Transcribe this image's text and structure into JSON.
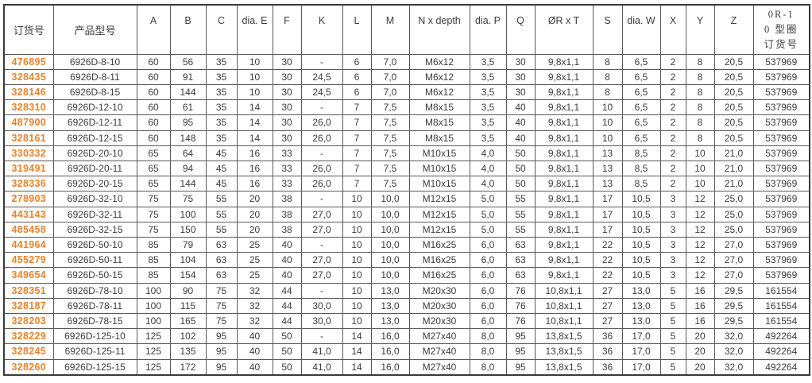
{
  "colors": {
    "order_number_accent": "#e8832b",
    "grid_line": "#5a5a5a",
    "text": "#3c3c3c"
  },
  "table": {
    "headers": [
      "订货号",
      "产品型号",
      "A",
      "B",
      "C",
      "dia. E",
      "F",
      "K",
      "L",
      "M",
      "N x depth",
      "dia. P",
      "Q",
      "ØR x T",
      "S",
      "dia. W",
      "X",
      "Y",
      "Z",
      "0R-1\n0 型圈\n订货号"
    ],
    "rows": [
      [
        "476895",
        "6926D-8-10",
        "60",
        "56",
        "35",
        "10",
        "30",
        "-",
        "6",
        "7,0",
        "M6x12",
        "3,5",
        "30",
        "9,8x1,1",
        "8",
        "6,5",
        "2",
        "8",
        "20,5",
        "537969"
      ],
      [
        "328435",
        "6926D-8-11",
        "60",
        "91",
        "35",
        "10",
        "30",
        "24,5",
        "6",
        "7,0",
        "M6x12",
        "3,5",
        "30",
        "9,8x1,1",
        "8",
        "6,5",
        "2",
        "8",
        "20,5",
        "537969"
      ],
      [
        "328146",
        "6926D-8-15",
        "60",
        "144",
        "35",
        "10",
        "30",
        "24,5",
        "6",
        "7,0",
        "M6x12",
        "3,5",
        "30",
        "9,8x1,1",
        "8",
        "6,5",
        "2",
        "8",
        "20,5",
        "537969"
      ],
      [
        "328310",
        "6926D-12-10",
        "60",
        "61",
        "35",
        "14",
        "30",
        "-",
        "7",
        "7,5",
        "M8x15",
        "3,5",
        "40",
        "9,8x1,1",
        "10",
        "6,5",
        "2",
        "8",
        "20,5",
        "537969"
      ],
      [
        "487900",
        "6926D-12-11",
        "60",
        "95",
        "35",
        "14",
        "30",
        "26,0",
        "7",
        "7,5",
        "M8x15",
        "3,5",
        "40",
        "9,8x1,1",
        "10",
        "6,5",
        "2",
        "8",
        "20,5",
        "537969"
      ],
      [
        "328161",
        "6926D-12-15",
        "60",
        "148",
        "35",
        "14",
        "30",
        "26,0",
        "7",
        "7,5",
        "M8x15",
        "3,5",
        "40",
        "9,8x1,1",
        "10",
        "6,5",
        "2",
        "8",
        "20,5",
        "537969"
      ],
      [
        "330332",
        "6926D-20-10",
        "65",
        "64",
        "45",
        "16",
        "33",
        "-",
        "7",
        "7,5",
        "M10x15",
        "4,0",
        "50",
        "9,8x1,1",
        "13",
        "8,5",
        "2",
        "10",
        "21,0",
        "537969"
      ],
      [
        "319491",
        "6926D-20-11",
        "65",
        "94",
        "45",
        "16",
        "33",
        "26,0",
        "7",
        "7,5",
        "M10x15",
        "4,0",
        "50",
        "9,8x1,1",
        "13",
        "8,5",
        "2",
        "10",
        "21,0",
        "537969"
      ],
      [
        "328336",
        "6926D-20-15",
        "65",
        "144",
        "45",
        "16",
        "33",
        "26,0",
        "7",
        "7,5",
        "M10x15",
        "4,0",
        "50",
        "9,8x1,1",
        "13",
        "8,5",
        "2",
        "10",
        "21,0",
        "537969"
      ],
      [
        "278903",
        "6926D-32-10",
        "75",
        "75",
        "55",
        "20",
        "38",
        "-",
        "10",
        "10,0",
        "M12x15",
        "5,0",
        "55",
        "9,8x1,1",
        "17",
        "10,5",
        "3",
        "12",
        "25,0",
        "537969"
      ],
      [
        "443143",
        "6926D-32-11",
        "75",
        "100",
        "55",
        "20",
        "38",
        "27,0",
        "10",
        "10,0",
        "M12x15",
        "5,0",
        "55",
        "9,8x1,1",
        "17",
        "10,5",
        "3",
        "12",
        "25,0",
        "537969"
      ],
      [
        "485458",
        "6926D-32-15",
        "75",
        "150",
        "55",
        "20",
        "38",
        "27,0",
        "10",
        "10,0",
        "M12x15",
        "5,0",
        "55",
        "9,8x1,1",
        "17",
        "10,5",
        "3",
        "12",
        "25,0",
        "537969"
      ],
      [
        "441964",
        "6926D-50-10",
        "85",
        "79",
        "63",
        "25",
        "40",
        "-",
        "10",
        "10,0",
        "M16x25",
        "6,0",
        "63",
        "9,8x1,1",
        "22",
        "10,5",
        "3",
        "12",
        "27,0",
        "537969"
      ],
      [
        "455279",
        "6926D-50-11",
        "85",
        "104",
        "63",
        "25",
        "40",
        "27,0",
        "10",
        "10,0",
        "M16x25",
        "6,0",
        "63",
        "9,8x1,1",
        "22",
        "10,5",
        "3",
        "12",
        "27,0",
        "537969"
      ],
      [
        "349654",
        "6926D-50-15",
        "85",
        "154",
        "63",
        "25",
        "40",
        "27,0",
        "10",
        "10,0",
        "M16x25",
        "6,0",
        "63",
        "9,8x1,1",
        "22",
        "10,5",
        "3",
        "12",
        "27,0",
        "537969"
      ],
      [
        "328351",
        "6926D-78-10",
        "100",
        "90",
        "75",
        "32",
        "44",
        "-",
        "10",
        "13,0",
        "M20x30",
        "6,0",
        "76",
        "10,8x1,1",
        "27",
        "13,0",
        "5",
        "16",
        "29,5",
        "161554"
      ],
      [
        "328187",
        "6926D-78-11",
        "100",
        "115",
        "75",
        "32",
        "44",
        "30,0",
        "10",
        "13,0",
        "M20x30",
        "6,0",
        "76",
        "10,8x1,1",
        "27",
        "13,0",
        "5",
        "16",
        "29,5",
        "161554"
      ],
      [
        "328203",
        "6926D-78-15",
        "100",
        "165",
        "75",
        "32",
        "44",
        "30,0",
        "10",
        "13,0",
        "M20x30",
        "6,0",
        "76",
        "10,8x1,1",
        "27",
        "13,0",
        "5",
        "16",
        "29,5",
        "161554"
      ],
      [
        "328229",
        "6926D-125-10",
        "125",
        "102",
        "95",
        "40",
        "50",
        "-",
        "14",
        "16,0",
        "M27x40",
        "8,0",
        "95",
        "13,8x1,5",
        "36",
        "17,0",
        "5",
        "20",
        "32,0",
        "492264"
      ],
      [
        "328245",
        "6926D-125-11",
        "125",
        "135",
        "95",
        "40",
        "50",
        "41,0",
        "14",
        "16,0",
        "M27x40",
        "8,0",
        "95",
        "13,8x1,5",
        "36",
        "17,0",
        "5",
        "20",
        "32,0",
        "492264"
      ],
      [
        "328260",
        "6926D-125-15",
        "125",
        "172",
        "95",
        "40",
        "50",
        "41,0",
        "14",
        "16,0",
        "M27x40",
        "8,0",
        "95",
        "13,8x1,5",
        "36",
        "17,0",
        "5",
        "20",
        "32,0",
        "492264"
      ]
    ]
  }
}
